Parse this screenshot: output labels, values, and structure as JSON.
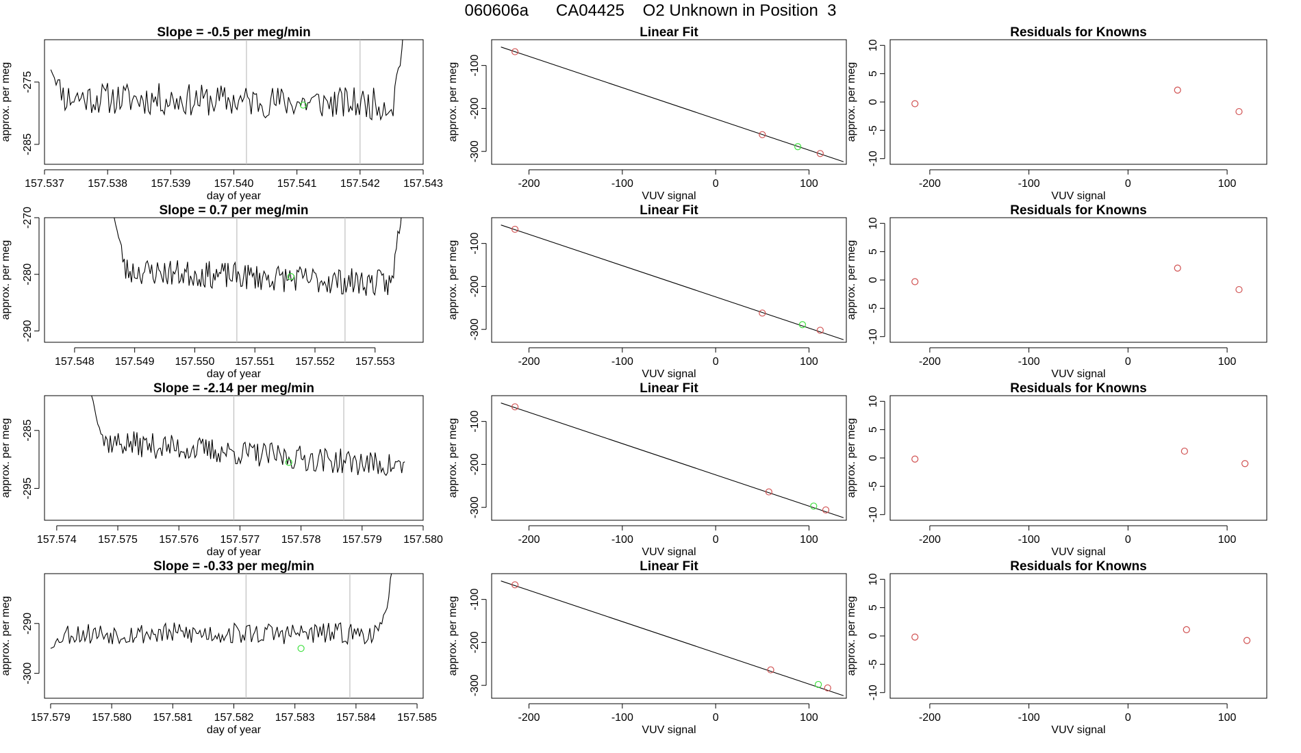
{
  "page_title": "060606a      CA04425    O2 Unknown in Position  3",
  "chart_data": [
    {
      "type": "line",
      "title": "Slope =  -0.5  per meg/min",
      "xlabel": "day of year",
      "ylabel": "approx. per meg",
      "xlim": [
        157.537,
        157.543
      ],
      "ylim": [
        -288.2,
        -268.2
      ],
      "xticks": [
        "157.537",
        "157.538",
        "157.539",
        "157.540",
        "157.541",
        "157.542",
        "157.543"
      ],
      "yticks": [
        "-275",
        "-285"
      ],
      "x_start": 157.5371,
      "x_end": 157.54272,
      "y_base": -278,
      "y_noise": 2.6,
      "y_trend": -1.2,
      "y_first": -273,
      "y_last_rise": true,
      "vlines": [
        157.5402,
        157.542
      ],
      "green_point": [
        157.5411,
        -278.7
      ],
      "seed": 11
    },
    {
      "type": "scatter",
      "title": "Linear Fit",
      "xlabel": "VUV signal",
      "ylabel": "approx. per meg",
      "xlim": [
        -240,
        140
      ],
      "ylim": [
        -330,
        -40
      ],
      "xticks": [
        "-200",
        "-100",
        "0",
        "100"
      ],
      "yticks": [
        "-100",
        "-200",
        "-300"
      ],
      "fit_line": [
        [
          -230,
          -57
        ],
        [
          137,
          -324
        ]
      ],
      "red_points": [
        [
          -215,
          -68
        ],
        [
          50,
          -261
        ],
        [
          112,
          -305
        ]
      ],
      "green_point": [
        88,
        -289
      ]
    },
    {
      "type": "scatter",
      "title": "Residuals for Knowns",
      "xlabel": "VUV signal",
      "ylabel": "approx. per meg",
      "xlim": [
        -240,
        140
      ],
      "ylim": [
        -11,
        11
      ],
      "xticks": [
        "-200",
        "-100",
        "0",
        "100"
      ],
      "yticks": [
        "10",
        "5",
        "0",
        "-5",
        "-10"
      ],
      "red_points": [
        [
          -215,
          -0.3
        ],
        [
          50,
          2.1
        ],
        [
          112,
          -1.7
        ]
      ]
    },
    {
      "type": "line",
      "title": "Slope =  0.7  per meg/min",
      "xlabel": "day of year",
      "ylabel": "approx. per meg",
      "xlim": [
        157.5475,
        157.5538
      ],
      "ylim": [
        -292,
        -270
      ],
      "xticks": [
        "157.548",
        "157.549",
        "157.550",
        "157.551",
        "157.552",
        "157.553"
      ],
      "yticks": [
        "-270",
        "-280",
        "-290"
      ],
      "x_start": 157.54866,
      "x_end": 157.55345,
      "y_base": -280.5,
      "y_noise": 2.4,
      "y_trend": -2.5,
      "y_first": -270,
      "y_last_rise": true,
      "vlines": [
        157.5507,
        157.5525
      ],
      "green_point": [
        157.5516,
        -280.4
      ],
      "seed": 23
    },
    {
      "type": "scatter",
      "title": "Linear Fit",
      "xlabel": "VUV signal",
      "ylabel": "approx. per meg",
      "xlim": [
        -240,
        140
      ],
      "ylim": [
        -330,
        -40
      ],
      "xticks": [
        "-200",
        "-100",
        "0",
        "100"
      ],
      "yticks": [
        "-100",
        "-200",
        "-300"
      ],
      "fit_line": [
        [
          -230,
          -57
        ],
        [
          137,
          -324
        ]
      ],
      "red_points": [
        [
          -215,
          -67
        ],
        [
          50,
          -262
        ],
        [
          112,
          -302
        ]
      ],
      "green_point": [
        93,
        -289
      ]
    },
    {
      "type": "scatter",
      "title": "Residuals for Knowns",
      "xlabel": "VUV signal",
      "ylabel": "approx. per meg",
      "xlim": [
        -240,
        140
      ],
      "ylim": [
        -11,
        11
      ],
      "xticks": [
        "-200",
        "-100",
        "0",
        "100"
      ],
      "yticks": [
        "10",
        "5",
        "0",
        "-5",
        "-10"
      ],
      "red_points": [
        [
          -215,
          -0.3
        ],
        [
          50,
          2.1
        ],
        [
          112,
          -1.7
        ]
      ]
    },
    {
      "type": "line",
      "title": "Slope =  -2.14  per meg/min",
      "xlabel": "day of year",
      "ylabel": "approx. per meg",
      "xlim": [
        157.5738,
        157.58
      ],
      "ylim": [
        -300.5,
        -279
      ],
      "xticks": [
        "157.574",
        "157.575",
        "157.576",
        "157.577",
        "157.578",
        "157.579",
        "157.580"
      ],
      "yticks": [
        "-285",
        "-295"
      ],
      "x_start": 157.57457,
      "x_end": 157.5797,
      "y_base": -289,
      "y_noise": 2.2,
      "y_trend": -4.5,
      "y_first": -279,
      "y_last_rise": false,
      "vlines": [
        157.5769,
        157.5787
      ],
      "green_point": [
        157.5778,
        -290.5
      ],
      "seed": 37
    },
    {
      "type": "scatter",
      "title": "Linear Fit",
      "xlabel": "VUV signal",
      "ylabel": "approx. per meg",
      "xlim": [
        -240,
        140
      ],
      "ylim": [
        -330,
        -40
      ],
      "xticks": [
        "-200",
        "-100",
        "0",
        "100"
      ],
      "yticks": [
        "-100",
        "-200",
        "-300"
      ],
      "fit_line": [
        [
          -230,
          -57
        ],
        [
          137,
          -324
        ]
      ],
      "red_points": [
        [
          -215,
          -66
        ],
        [
          57,
          -264
        ],
        [
          118,
          -306
        ]
      ],
      "green_point": [
        105,
        -297
      ]
    },
    {
      "type": "scatter",
      "title": "Residuals for Knowns",
      "xlabel": "VUV signal",
      "ylabel": "approx. per meg",
      "xlim": [
        -240,
        140
      ],
      "ylim": [
        -11,
        11
      ],
      "xticks": [
        "-200",
        "-100",
        "0",
        "100"
      ],
      "yticks": [
        "10",
        "5",
        "0",
        "-5",
        "-10"
      ],
      "red_points": [
        [
          -215,
          -0.2
        ],
        [
          57,
          1.2
        ],
        [
          118,
          -1.0
        ]
      ]
    },
    {
      "type": "line",
      "title": "Slope =  -0.33  per meg/min",
      "xlabel": "day of year",
      "ylabel": "approx. per meg",
      "xlim": [
        157.5789,
        157.5851
      ],
      "ylim": [
        -305,
        -280
      ],
      "xticks": [
        "157.579",
        "157.580",
        "157.581",
        "157.582",
        "157.583",
        "157.584",
        "157.585"
      ],
      "yticks": [
        "-290",
        "-300"
      ],
      "x_start": 157.579,
      "x_end": 157.58462,
      "y_base": -292,
      "y_noise": 2.2,
      "y_trend": 0,
      "y_first": -295,
      "y_last_rise": true,
      "vlines": [
        157.5822,
        157.5839
      ],
      "green_point": [
        157.5831,
        -295
      ],
      "seed": 53
    },
    {
      "type": "scatter",
      "title": "Linear Fit",
      "xlabel": "VUV signal",
      "ylabel": "approx. per meg",
      "xlim": [
        -240,
        140
      ],
      "ylim": [
        -330,
        -40
      ],
      "xticks": [
        "-200",
        "-100",
        "0",
        "100"
      ],
      "yticks": [
        "-100",
        "-200",
        "-300"
      ],
      "fit_line": [
        [
          -230,
          -57
        ],
        [
          137,
          -324
        ]
      ],
      "red_points": [
        [
          -215,
          -66
        ],
        [
          59,
          -264
        ],
        [
          120,
          -306
        ]
      ],
      "green_point": [
        110,
        -298
      ]
    },
    {
      "type": "scatter",
      "title": "Residuals for Knowns",
      "xlabel": "VUV signal",
      "ylabel": "approx. per meg",
      "xlim": [
        -240,
        140
      ],
      "ylim": [
        -11,
        11
      ],
      "xticks": [
        "-200",
        "-100",
        "0",
        "100"
      ],
      "yticks": [
        "10",
        "5",
        "0",
        "-5",
        "-10"
      ],
      "red_points": [
        [
          -215,
          -0.2
        ],
        [
          59,
          1.1
        ],
        [
          120,
          -0.8
        ]
      ]
    }
  ],
  "colors": {
    "axis": "#000000",
    "line": "#000000",
    "vline": "#bebebe",
    "red": "#d05050",
    "green": "#40e040"
  }
}
